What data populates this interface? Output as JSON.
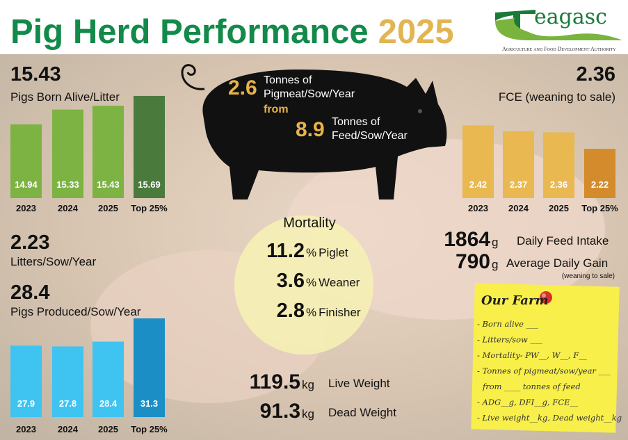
{
  "header": {
    "title": "Pig Herd Performance",
    "year": "2025",
    "logo": "eagasc",
    "logo_subtitle": "Agriculture and Food Development Authority"
  },
  "chart_data": [
    {
      "type": "bar",
      "headline": 15.43,
      "title": "Pigs Born Alive/Litter",
      "categories": [
        "2023",
        "2024",
        "2025",
        "Top 25%"
      ],
      "values": [
        14.94,
        15.33,
        15.43,
        15.69
      ],
      "colors": [
        "#7cb342",
        "#7cb342",
        "#7cb342",
        "#4b7b3c"
      ],
      "ylim": [
        13,
        16
      ]
    },
    {
      "type": "bar",
      "headline": 2.36,
      "title": "FCE (weaning to sale)",
      "categories": [
        "2023",
        "2024",
        "2025",
        "Top 25%"
      ],
      "values": [
        2.42,
        2.37,
        2.36,
        2.22
      ],
      "colors": [
        "#e9b850",
        "#e9b850",
        "#e9b850",
        "#d38b2c"
      ],
      "ylim": [
        1.8,
        2.6
      ]
    },
    {
      "type": "bar",
      "headline": 28.4,
      "title": "Pigs Produced/Sow/Year",
      "categories": [
        "2023",
        "2024",
        "2025",
        "Top 25%"
      ],
      "values": [
        27.9,
        27.8,
        28.4,
        31.3
      ],
      "colors": [
        "#3fc3f0",
        "#3fc3f0",
        "#3fc3f0",
        "#1b8ec6"
      ],
      "ylim": [
        19,
        32
      ]
    }
  ],
  "litters": {
    "value": "2.23",
    "label": "Litters/Sow/Year"
  },
  "pig": {
    "pigmeat": "2.6",
    "pigmeat_label_1": "Tonnes of",
    "pigmeat_label_2": "Pigmeat/Sow/Year",
    "from": "from",
    "feed": "8.9",
    "feed_label_1": "Tonnes of",
    "feed_label_2": "Feed/Sow/Year"
  },
  "mortality": {
    "title": "Mortality",
    "items": [
      {
        "value": "11.2",
        "unit": "%",
        "label": "Piglet"
      },
      {
        "value": "3.6",
        "unit": "%",
        "label": "Weaner"
      },
      {
        "value": "2.8",
        "unit": "%",
        "label": "Finisher"
      }
    ]
  },
  "feed": {
    "items": [
      {
        "value": "1864",
        "unit": "g",
        "label": "Daily Feed Intake"
      },
      {
        "value": "790",
        "unit": "g",
        "label": "Average Daily Gain"
      }
    ],
    "note": "(weaning to sale)"
  },
  "weights": {
    "items": [
      {
        "value": "119.5",
        "unit": "kg",
        "label": "Live Weight"
      },
      {
        "value": "91.3",
        "unit": "kg",
        "label": "Dead Weight"
      }
    ]
  },
  "our_farm": {
    "title": "Our Farm",
    "lines": [
      "- Born alive ___",
      "- Litters/sow ___",
      "- Mortality- PW__, W__, F__",
      "- Tonnes of pigmeat/sow/year ___",
      "from ____ tonnes of feed",
      "- ADG__g, DFI__g, FCE__",
      "- Live weight__kg, Dead weight__kg"
    ]
  }
}
